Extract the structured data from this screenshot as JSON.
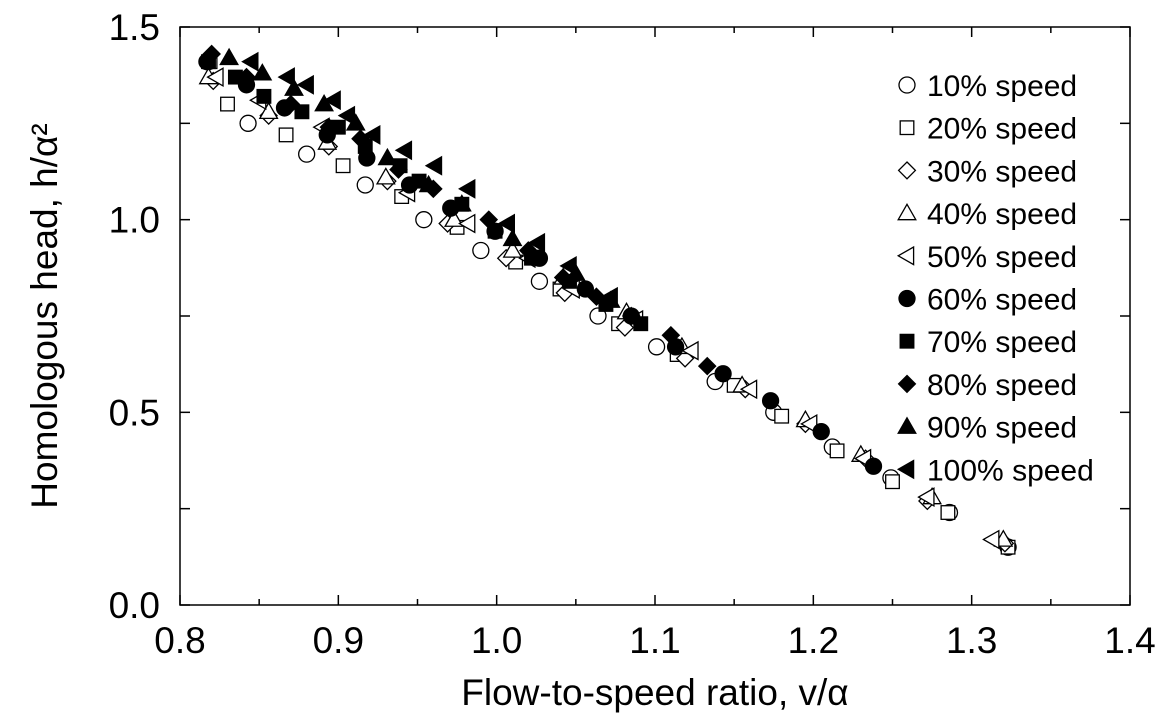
{
  "chart_data": {
    "type": "scatter",
    "xlabel": "Flow-to-speed ratio, v/α",
    "ylabel": "Homologous head, h/α²",
    "xlim": [
      0.8,
      1.4
    ],
    "ylim": [
      0.0,
      1.5
    ],
    "xticks": [
      "0.8",
      "0.9",
      "1.0",
      "1.1",
      "1.2",
      "1.3",
      "1.4"
    ],
    "yticks": [
      "0.0",
      "0.5",
      "1.0",
      "1.5"
    ],
    "legend_position": "top-right",
    "grid": false,
    "series": [
      {
        "name": "10% speed",
        "marker": "circle-open",
        "x": [
          0.818,
          0.843,
          0.88,
          0.917,
          0.954,
          0.99,
          1.027,
          1.064,
          1.101,
          1.138,
          1.175,
          1.212,
          1.249,
          1.286,
          1.323
        ],
        "y": [
          1.41,
          1.25,
          1.17,
          1.09,
          1.0,
          0.92,
          0.84,
          0.75,
          0.67,
          0.58,
          0.5,
          0.41,
          0.33,
          0.24,
          0.15
        ]
      },
      {
        "name": "20% speed",
        "marker": "square-open",
        "x": [
          0.819,
          0.83,
          0.867,
          0.903,
          0.94,
          0.975,
          1.012,
          1.04,
          1.077,
          1.114,
          1.15,
          1.18,
          1.215,
          1.25,
          1.285,
          1.323
        ],
        "y": [
          1.41,
          1.3,
          1.22,
          1.14,
          1.06,
          0.98,
          0.89,
          0.82,
          0.73,
          0.65,
          0.57,
          0.49,
          0.4,
          0.32,
          0.24,
          0.15
        ]
      },
      {
        "name": "30% speed",
        "marker": "diamond-open",
        "x": [
          0.821,
          0.856,
          0.894,
          0.931,
          0.969,
          1.006,
          1.043,
          1.081,
          1.119,
          1.157,
          1.195,
          1.233,
          1.272,
          1.321
        ],
        "y": [
          1.36,
          1.27,
          1.19,
          1.1,
          0.99,
          0.9,
          0.81,
          0.72,
          0.64,
          0.56,
          0.47,
          0.38,
          0.27,
          0.16
        ]
      },
      {
        "name": "40% speed",
        "marker": "triangle-up-open",
        "x": [
          0.818,
          0.856,
          0.893,
          0.93,
          0.973,
          1.01,
          1.042,
          1.082,
          1.117,
          1.155,
          1.195,
          1.23,
          1.275,
          1.32
        ],
        "y": [
          1.37,
          1.28,
          1.2,
          1.11,
          1.0,
          0.92,
          0.85,
          0.76,
          0.67,
          0.57,
          0.48,
          0.39,
          0.28,
          0.17
        ]
      },
      {
        "name": "50% speed",
        "marker": "triangle-left-open",
        "x": [
          0.823,
          0.85,
          0.89,
          0.944,
          0.982,
          1.02,
          1.048,
          1.088,
          1.123,
          1.16,
          1.198,
          1.232,
          1.272,
          1.313
        ],
        "y": [
          1.37,
          1.31,
          1.24,
          1.07,
          0.99,
          0.9,
          0.82,
          0.74,
          0.66,
          0.56,
          0.47,
          0.38,
          0.28,
          0.17
        ]
      },
      {
        "name": "60% speed",
        "marker": "circle-filled",
        "x": [
          0.817,
          0.842,
          0.866,
          0.893,
          0.918,
          0.945,
          0.971,
          0.999,
          1.027,
          1.056,
          1.085,
          1.113,
          1.143,
          1.173,
          1.205,
          1.238
        ],
        "y": [
          1.41,
          1.35,
          1.29,
          1.22,
          1.16,
          1.09,
          1.03,
          0.97,
          0.9,
          0.82,
          0.75,
          0.67,
          0.6,
          0.53,
          0.45,
          0.36
        ]
      },
      {
        "name": "70% speed",
        "marker": "square-filled",
        "x": [
          0.818,
          0.835,
          0.853,
          0.877,
          0.9,
          0.917,
          0.939,
          0.951,
          0.978,
          0.999,
          1.022,
          1.046,
          1.069,
          1.091
        ],
        "y": [
          1.41,
          1.37,
          1.32,
          1.28,
          1.24,
          1.19,
          1.14,
          1.1,
          1.04,
          0.97,
          0.9,
          0.84,
          0.78,
          0.73
        ]
      },
      {
        "name": "80% speed",
        "marker": "diamond-filled",
        "x": [
          0.82,
          0.842,
          0.87,
          0.894,
          0.914,
          0.938,
          0.96,
          0.995,
          1.02,
          1.042,
          1.063,
          1.085,
          1.11,
          1.133
        ],
        "y": [
          1.43,
          1.37,
          1.3,
          1.24,
          1.21,
          1.13,
          1.08,
          1.0,
          0.92,
          0.85,
          0.8,
          0.75,
          0.7,
          0.62
        ]
      },
      {
        "name": "90% speed",
        "marker": "triangle-up-filled",
        "x": [
          0.831,
          0.852,
          0.872,
          0.891,
          0.911,
          0.931,
          0.957,
          0.978,
          1.01,
          1.05,
          1.072
        ],
        "y": [
          1.42,
          1.38,
          1.34,
          1.3,
          1.25,
          1.16,
          1.09,
          1.04,
          0.95,
          0.86,
          0.79
        ]
      },
      {
        "name": "100% speed",
        "marker": "triangle-left-filled",
        "x": [
          0.845,
          0.868,
          0.88,
          0.897,
          0.906,
          0.922,
          0.942,
          0.961,
          0.982,
          1.007,
          1.026,
          1.046,
          1.072
        ],
        "y": [
          1.41,
          1.37,
          1.35,
          1.31,
          1.27,
          1.22,
          1.18,
          1.14,
          1.08,
          0.99,
          0.94,
          0.88,
          0.8
        ]
      }
    ]
  }
}
